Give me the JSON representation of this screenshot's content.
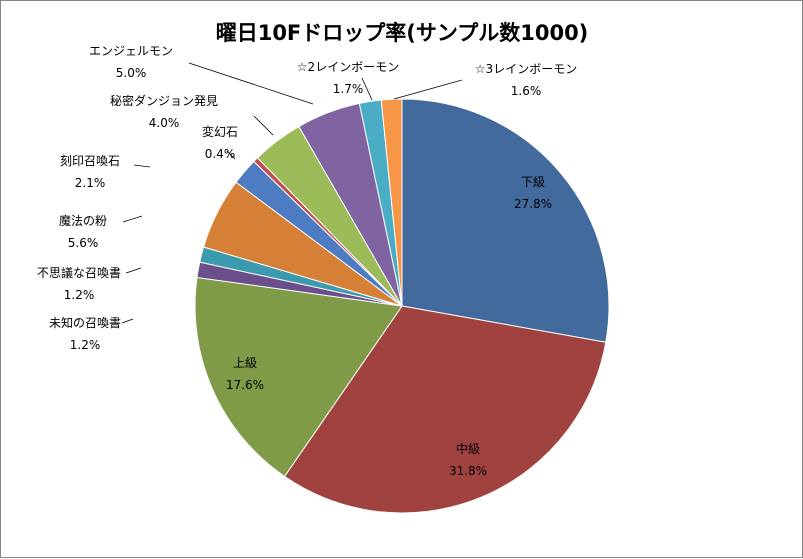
{
  "chart_data": {
    "type": "pie",
    "title": "曜日10Fドロップ率(サンプル数1000)",
    "slices": [
      {
        "label": "下級",
        "value": 27.8,
        "display": "27.8%",
        "color": "#426A9D"
      },
      {
        "label": "中級",
        "value": 31.8,
        "display": "31.8%",
        "color": "#A04340"
      },
      {
        "label": "上級",
        "value": 17.6,
        "display": "17.6%",
        "color": "#7F9B48"
      },
      {
        "label": "未知の召喚書",
        "value": 1.2,
        "display": "1.2%",
        "color": "#6A4F8C"
      },
      {
        "label": "不思議な召喚書",
        "value": 1.2,
        "display": "1.2%",
        "color": "#3C9AAE"
      },
      {
        "label": "魔法の粉",
        "value": 5.6,
        "display": "5.6%",
        "color": "#D57F37"
      },
      {
        "label": "刻印召喚石",
        "value": 2.1,
        "display": "2.1%",
        "color": "#4E7CC2"
      },
      {
        "label": "変幻石",
        "value": 0.4,
        "display": "0.4%",
        "color": "#C0504D"
      },
      {
        "label": "秘密ダンジョン発見",
        "value": 4.0,
        "display": "4.0%",
        "color": "#9BBB59"
      },
      {
        "label": "エンジェルモン",
        "value": 5.0,
        "display": "5.0%",
        "color": "#8064A2"
      },
      {
        "label": "☆2レインボーモン",
        "value": 1.7,
        "display": "1.7%",
        "color": "#4BACC6"
      },
      {
        "label": "☆3レインボーモン",
        "value": 1.6,
        "display": "1.6%",
        "color": "#F79646"
      }
    ],
    "start_angle_deg": 0,
    "direction": "clockwise",
    "legend": "none"
  }
}
